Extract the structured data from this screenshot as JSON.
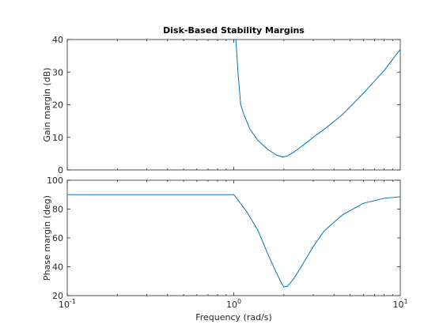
{
  "chart_data": {
    "type": "line",
    "title": "Disk-Based Stability Margins",
    "xlabel": "Frequency (rad/s)",
    "xscale": "log",
    "xlim": [
      0.1,
      10
    ],
    "x_ticks": [
      {
        "value": 0.1,
        "base": "10",
        "exp": "-1"
      },
      {
        "value": 1,
        "base": "10",
        "exp": "0"
      },
      {
        "value": 10,
        "base": "10",
        "exp": "1"
      }
    ],
    "grid": false,
    "line_color": "#0072bd",
    "panels": [
      {
        "id": "gain",
        "ylabel": "Gain margin (dB)",
        "ylim": [
          0,
          40
        ],
        "y_ticks": [
          "0",
          "10",
          "20",
          "30",
          "40"
        ],
        "series": [
          {
            "x": [
              1.0,
              1.03,
              1.06,
              1.1,
              1.15,
              1.25,
              1.4,
              1.6,
              1.8,
              1.95,
              2.0,
              2.1,
              2.3,
              2.6,
              3.0,
              3.5,
              4.5,
              6.0,
              8.0,
              10.0
            ],
            "y": [
              48,
              40,
              30,
              20,
              17,
              12.5,
              9,
              6.3,
              4.6,
              4,
              4,
              4.3,
              5.5,
              7.5,
              10,
              12.5,
              17,
              23.5,
              30.5,
              37
            ]
          }
        ]
      },
      {
        "id": "phase",
        "ylabel": "Phase margin (deg)",
        "ylim": [
          20,
          100
        ],
        "y_ticks": [
          "20",
          "40",
          "60",
          "80",
          "100"
        ],
        "series": [
          {
            "x": [
              0.1,
              0.2,
              0.5,
              0.8,
              1.0,
              1.05,
              1.2,
              1.4,
              1.6,
              1.8,
              1.95,
              2.0,
              2.1,
              2.3,
              2.6,
              3.0,
              3.5,
              4.5,
              6.0,
              8.0,
              10.0
            ],
            "y": [
              90,
              90,
              90,
              90,
              90,
              87,
              78,
              65,
              49,
              36,
              28,
              26,
              26.5,
              32,
              42,
              54,
              65,
              76,
              84,
              87.5,
              88.5
            ]
          }
        ]
      }
    ]
  }
}
